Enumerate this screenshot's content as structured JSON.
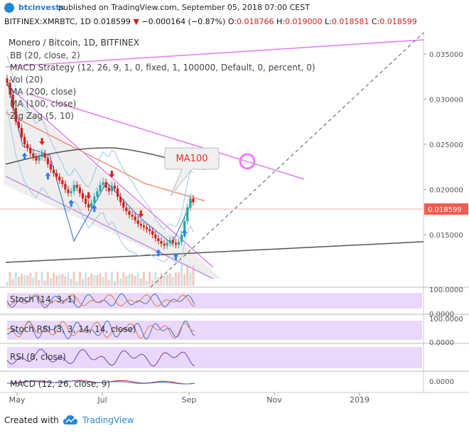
{
  "header": {
    "author": "btcinvests",
    "published": "published on TradingView.com, September 05, 2018 07:00 CEST",
    "symbol": "BITFINEX:XMRBTC, 1D",
    "last": "0.018599",
    "change_arrow": "▼",
    "change": "−0.000164 (−0.87%)",
    "o_label": "O:",
    "o_value": "0.018766",
    "h_label": "H:",
    "h_value": "0.019000",
    "l_label": "L:",
    "l_value": "0.018581",
    "c_label": "C:",
    "c_value": "0.018599"
  },
  "footer": {
    "created_with": "Created with",
    "brand": "TradingView"
  },
  "colors": {
    "up": "#26a69a",
    "down": "#d0201c",
    "bb": "#9ec4e6",
    "ma100": "#ef8f7a",
    "ma200": "#555555",
    "channel": "#e17cf0",
    "zigzag": "#4a7bd8",
    "panel": "#e9d8fb"
  },
  "chart_data": {
    "type": "candlestick",
    "title": "Monero / Bitcoin, 1D, BITFINEX",
    "price_axis_ticks": [
      "0.035000",
      "0.030000",
      "0.025000",
      "0.020000",
      "0.015000"
    ],
    "ylim": [
      0.0095,
      0.0375
    ],
    "last_price_label": "0.018599",
    "time_axis_ticks": [
      "May",
      "Jul",
      "Sep",
      "Nov",
      "2019"
    ],
    "indicator_legend": [
      "BB (20, close, 2)",
      "MACD Strategy (12, 26, 9, 1, 0, fixed, 1, 100000, Default, 0, percent, 0)",
      "Vol (20)",
      "MA (200, close)",
      "MA (100, close)",
      "Zig Zag (5, 10)"
    ],
    "annotation": "MA100",
    "close_series": [
      0.0318,
      0.0305,
      0.029,
      0.0275,
      0.0268,
      0.0258,
      0.025,
      0.0246,
      0.024,
      0.0236,
      0.0232,
      0.0236,
      0.024,
      0.0235,
      0.0228,
      0.0222,
      0.0218,
      0.0214,
      0.021,
      0.0206,
      0.02,
      0.0196,
      0.0198,
      0.0205,
      0.0202,
      0.0196,
      0.019,
      0.0184,
      0.018,
      0.0185,
      0.0192,
      0.0198,
      0.0205,
      0.0208,
      0.0202,
      0.0198,
      0.0204,
      0.0201,
      0.0192,
      0.0186,
      0.018,
      0.0176,
      0.0172,
      0.017,
      0.0166,
      0.0162,
      0.016,
      0.0158,
      0.0156,
      0.0154,
      0.015,
      0.0146,
      0.0143,
      0.014,
      0.0138,
      0.0141,
      0.0144,
      0.0141,
      0.0139,
      0.0142,
      0.015,
      0.0165,
      0.018,
      0.019,
      0.0186
    ],
    "panels": [
      {
        "label": "Stoch (14, 3, 1)",
        "ticks": [
          "100.0000",
          "0.0000"
        ]
      },
      {
        "label": "Stoch RSI (3, 3, 14, 14, close)",
        "ticks": [
          "100.0000",
          "0.0000"
        ]
      },
      {
        "label": "RSI (8, close)",
        "ticks": []
      },
      {
        "label": "MACD (12, 26, close, 9)",
        "ticks": [
          "0.0000"
        ]
      }
    ]
  }
}
